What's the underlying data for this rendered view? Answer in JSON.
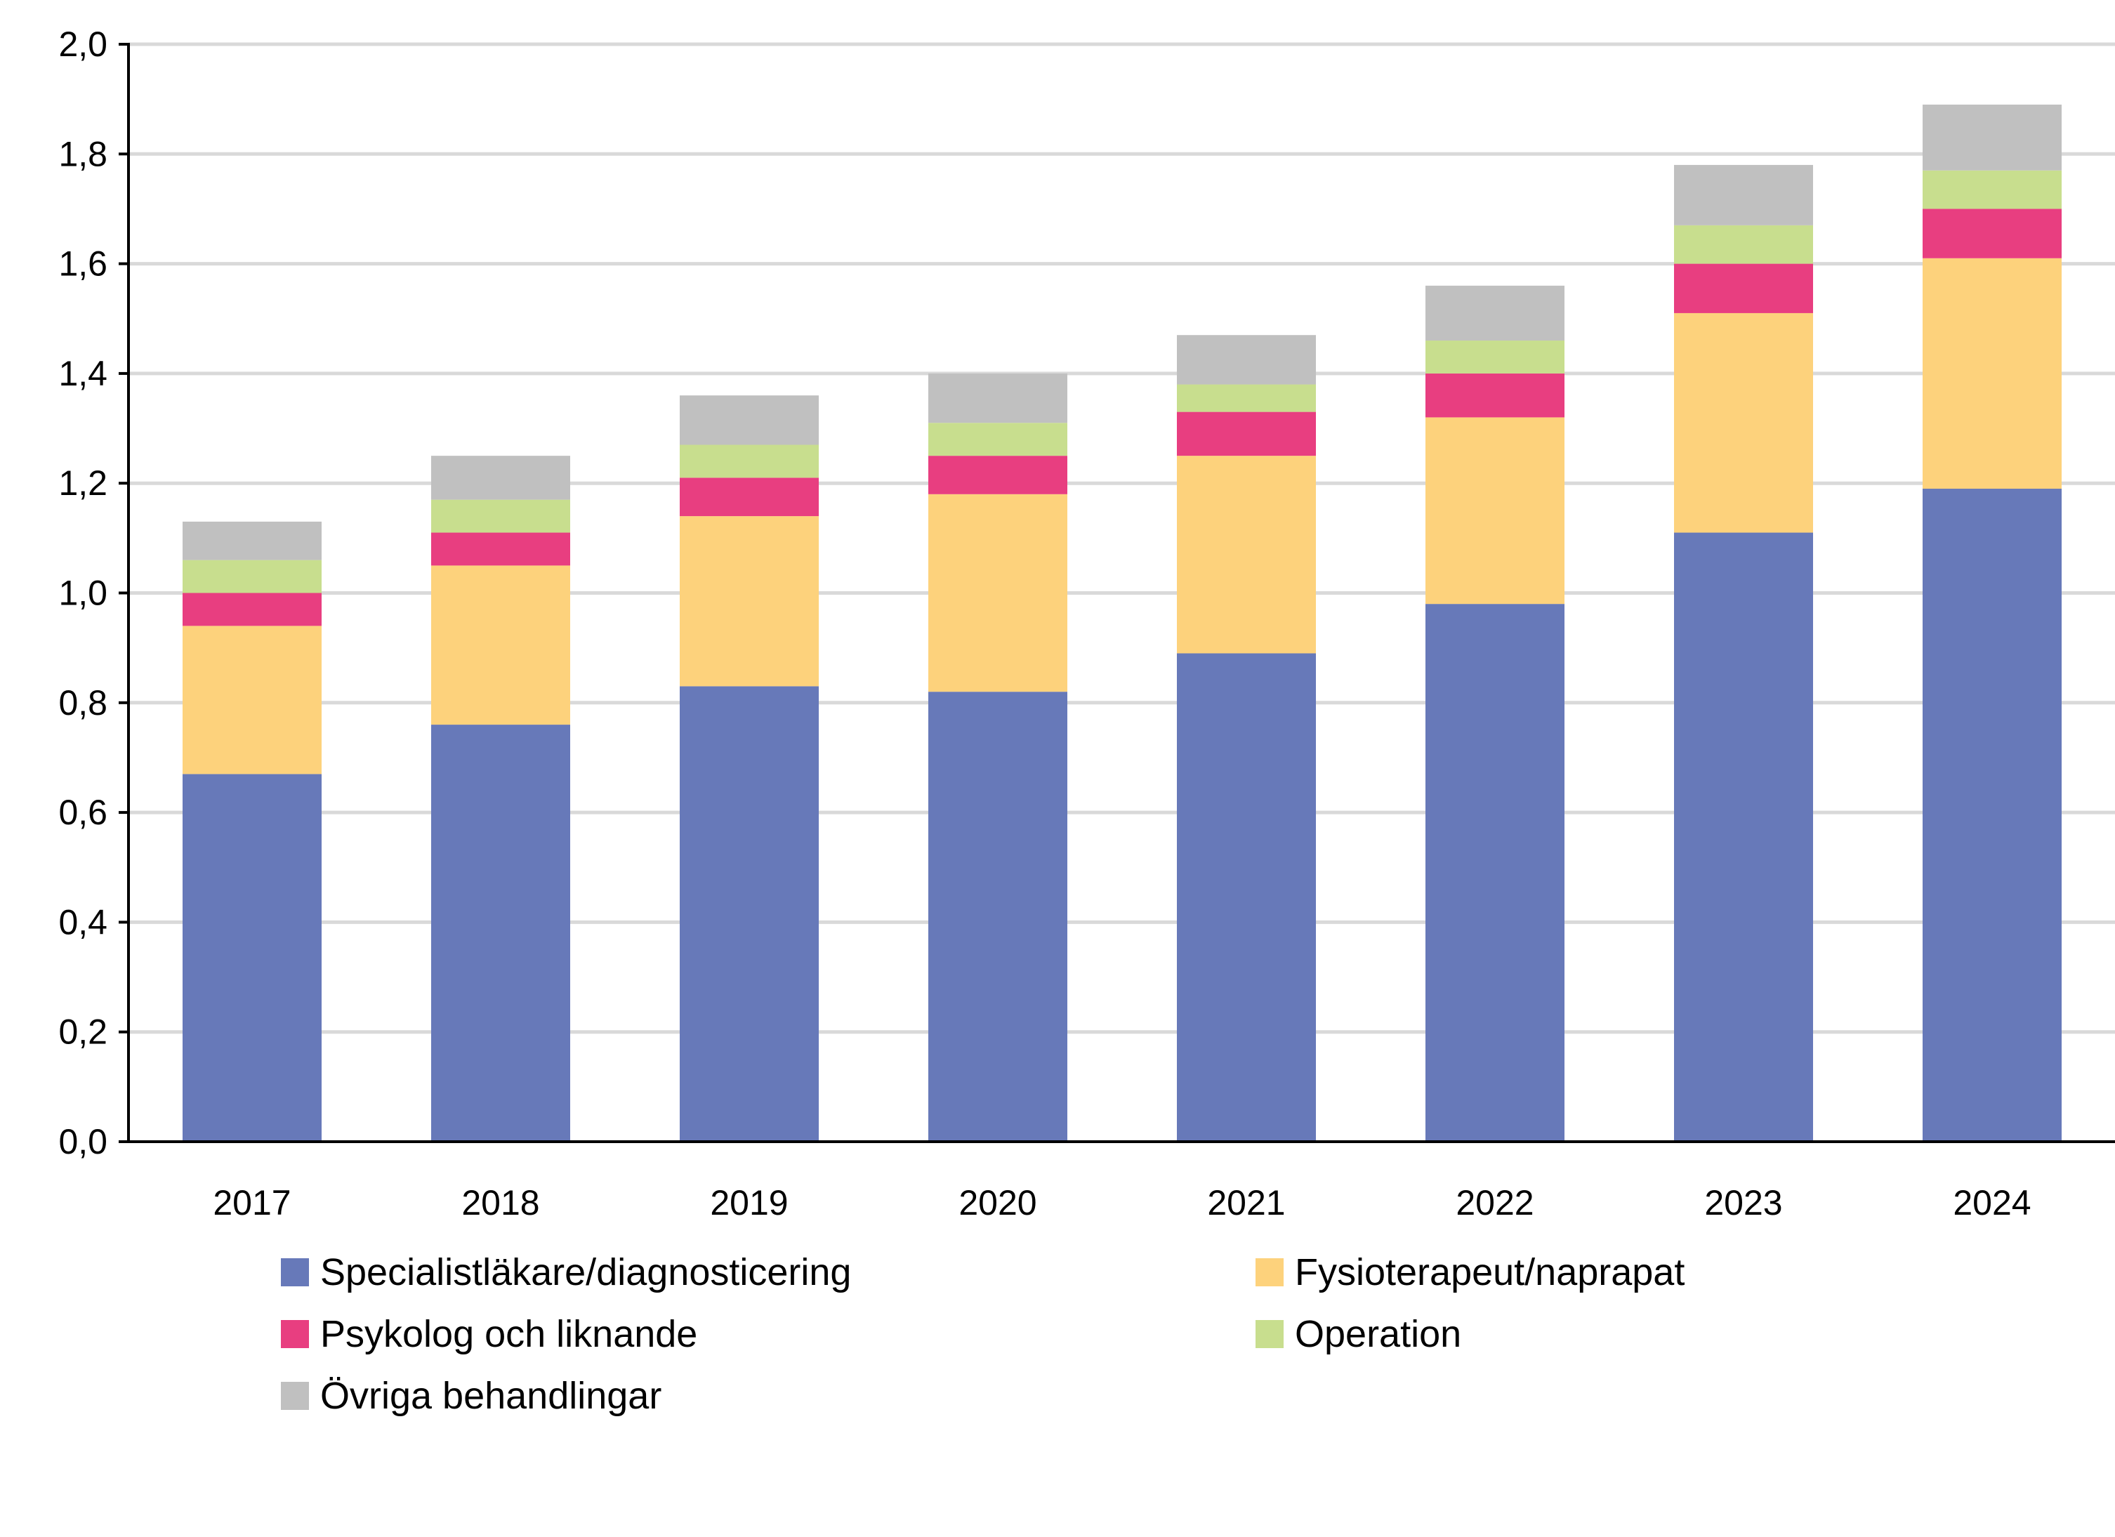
{
  "chart_data": {
    "type": "bar",
    "stacked": true,
    "title": "",
    "xlabel": "",
    "ylabel": "",
    "ylim": [
      0,
      2.0
    ],
    "yticks": [
      "0,0",
      "0,2",
      "0,4",
      "0,6",
      "0,8",
      "1,0",
      "1,2",
      "1,4",
      "1,6",
      "1,8",
      "2,0"
    ],
    "grid": true,
    "legend_position": "bottom",
    "categories": [
      "2017",
      "2018",
      "2019",
      "2020",
      "2021",
      "2022",
      "2023",
      "2024"
    ],
    "series": [
      {
        "name": "Specialistläkare/diagnosticering",
        "color": "#6779B9",
        "values": [
          0.67,
          0.76,
          0.83,
          0.82,
          0.89,
          0.98,
          1.11,
          1.19
        ]
      },
      {
        "name": "Fysioterapeut/naprapat",
        "color": "#FDD27C",
        "values": [
          0.27,
          0.29,
          0.31,
          0.36,
          0.36,
          0.34,
          0.4,
          0.42
        ]
      },
      {
        "name": "Psykolog och liknande",
        "color": "#E83E80",
        "values": [
          0.06,
          0.06,
          0.07,
          0.07,
          0.08,
          0.08,
          0.09,
          0.09
        ]
      },
      {
        "name": "Operation",
        "color": "#C8DE8E",
        "values": [
          0.06,
          0.06,
          0.06,
          0.06,
          0.05,
          0.06,
          0.07,
          0.07
        ]
      },
      {
        "name": "Övriga behandlingar",
        "color": "#C0C0C0",
        "values": [
          0.07,
          0.08,
          0.09,
          0.09,
          0.09,
          0.1,
          0.11,
          0.12
        ]
      }
    ]
  }
}
